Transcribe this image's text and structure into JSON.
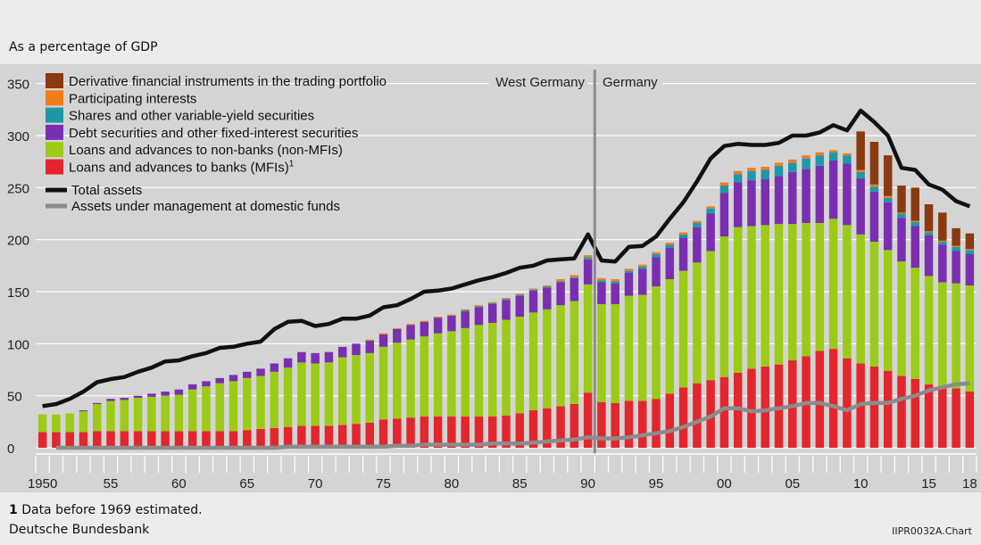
{
  "unit_label": "As a percentage of GDP",
  "period_labels": {
    "left": "West Germany",
    "right": "Germany"
  },
  "footnote": {
    "mark": "1",
    "text": "Data before 1969 estimated."
  },
  "source": "Deutsche Bundesbank",
  "chart_id": "IIPR0032A.Chart",
  "colors": {
    "derivatives": "#8a3a10",
    "participating": "#f07d1a",
    "shares": "#1e98a6",
    "debt": "#7a2fb0",
    "loans_nonbanks": "#9bcb16",
    "loans_banks": "#e3262e",
    "total_assets": "#111111",
    "aum": "#8c8c8c",
    "divider": "#8c8c8c"
  },
  "chart_data": {
    "type": "bar",
    "stacked": true,
    "ylim": [
      0,
      350
    ],
    "yticks": [
      0,
      50,
      100,
      150,
      200,
      250,
      300,
      350
    ],
    "x": [
      1950,
      1951,
      1952,
      1953,
      1954,
      1955,
      1956,
      1957,
      1958,
      1959,
      1960,
      1961,
      1962,
      1963,
      1964,
      1965,
      1966,
      1967,
      1968,
      1969,
      1970,
      1971,
      1972,
      1973,
      1974,
      1975,
      1976,
      1977,
      1978,
      1979,
      1980,
      1981,
      1982,
      1983,
      1984,
      1985,
      1986,
      1987,
      1988,
      1989,
      1990,
      1991,
      1992,
      1993,
      1994,
      1995,
      1996,
      1997,
      1998,
      1999,
      2000,
      2001,
      2002,
      2003,
      2004,
      2005,
      2006,
      2007,
      2008,
      2009,
      2010,
      2011,
      2012,
      2013,
      2014,
      2015,
      2016,
      2017,
      2018
    ],
    "xtick_labels": [
      {
        "year": 1950,
        "label": "1950"
      },
      {
        "year": 1955,
        "label": "55"
      },
      {
        "year": 1960,
        "label": "60"
      },
      {
        "year": 1965,
        "label": "65"
      },
      {
        "year": 1970,
        "label": "70"
      },
      {
        "year": 1975,
        "label": "75"
      },
      {
        "year": 1980,
        "label": "80"
      },
      {
        "year": 1985,
        "label": "85"
      },
      {
        "year": 1990,
        "label": "90"
      },
      {
        "year": 1995,
        "label": "95"
      },
      {
        "year": 2000,
        "label": "00"
      },
      {
        "year": 2005,
        "label": "05"
      },
      {
        "year": 2010,
        "label": "10"
      },
      {
        "year": 2015,
        "label": "15"
      },
      {
        "year": 2018,
        "label": "18"
      }
    ],
    "divider_year": 1990.5,
    "legend_position": "top-left",
    "series": [
      {
        "key": "loans_banks",
        "name": "Loans and advances to banks (MFIs)",
        "superscript": "1",
        "kind": "bar",
        "values": [
          15,
          15,
          15,
          15,
          16,
          16,
          16,
          16,
          16,
          16,
          16,
          16,
          16,
          16,
          16,
          17,
          18,
          19,
          20,
          21,
          21,
          21,
          22,
          23,
          24,
          27,
          28,
          29,
          30,
          30,
          30,
          30,
          30,
          30,
          31,
          33,
          36,
          38,
          40,
          42,
          53,
          44,
          43,
          45,
          45,
          47,
          52,
          58,
          62,
          65,
          68,
          72,
          76,
          78,
          80,
          84,
          88,
          93,
          95,
          86,
          81,
          78,
          74,
          69,
          66,
          61,
          58,
          57,
          54
        ]
      },
      {
        "key": "loans_nonbanks",
        "name": "Loans and advances to non-banks (non-MFIs)",
        "kind": "bar",
        "values": [
          17,
          17,
          18,
          20,
          26,
          29,
          30,
          32,
          33,
          34,
          35,
          40,
          43,
          46,
          48,
          50,
          51,
          54,
          57,
          61,
          60,
          61,
          65,
          66,
          67,
          70,
          73,
          75,
          77,
          80,
          82,
          85,
          88,
          90,
          92,
          93,
          94,
          95,
          97,
          99,
          104,
          94,
          95,
          101,
          102,
          108,
          110,
          112,
          116,
          124,
          135,
          140,
          137,
          136,
          135,
          131,
          128,
          123,
          125,
          128,
          124,
          120,
          116,
          110,
          107,
          104,
          101,
          101,
          102
        ]
      },
      {
        "key": "debt",
        "name": "Debt securities and other fixed-interest securities",
        "kind": "bar",
        "values": [
          0,
          0,
          0,
          1,
          1,
          2,
          2,
          2,
          3,
          4,
          5,
          5,
          5,
          5,
          6,
          6,
          7,
          8,
          9,
          10,
          10,
          10,
          10,
          11,
          12,
          12,
          13,
          14,
          14,
          15,
          15,
          16,
          17,
          18,
          19,
          20,
          21,
          21,
          22,
          22,
          24,
          21,
          20,
          22,
          25,
          28,
          30,
          32,
          34,
          36,
          42,
          43,
          44,
          44,
          46,
          50,
          52,
          55,
          56,
          59,
          54,
          48,
          46,
          42,
          40,
          39,
          36,
          31,
          30
        ]
      },
      {
        "key": "shares",
        "name": "Shares and other variable-yield securities",
        "kind": "bar",
        "values": [
          0,
          0,
          0,
          0,
          0,
          0,
          0,
          0,
          0,
          0,
          0,
          0,
          0,
          0,
          0,
          0,
          0,
          0,
          0,
          0,
          0,
          0,
          0,
          0,
          0,
          0,
          0,
          0,
          0,
          0,
          0,
          1,
          1,
          1,
          1,
          1,
          1,
          1,
          1,
          1,
          2,
          2,
          2,
          2,
          2,
          3,
          3,
          3,
          4,
          5,
          7,
          8,
          9,
          9,
          10,
          9,
          10,
          10,
          8,
          8,
          6,
          5,
          4,
          4,
          4,
          3,
          3,
          4,
          4
        ]
      },
      {
        "key": "participating",
        "name": "Participating interests",
        "kind": "bar",
        "values": [
          0,
          0,
          0,
          0,
          0,
          0,
          0,
          0,
          0,
          0,
          0,
          0,
          0,
          0,
          0,
          0,
          0,
          0,
          0,
          0,
          0,
          0,
          0,
          0,
          1,
          1,
          1,
          1,
          1,
          1,
          1,
          1,
          1,
          1,
          1,
          1,
          1,
          1,
          2,
          2,
          2,
          2,
          2,
          2,
          2,
          2,
          2,
          2,
          2,
          2,
          3,
          3,
          3,
          3,
          3,
          3,
          3,
          3,
          2,
          2,
          2,
          2,
          2,
          1,
          1,
          1,
          1,
          1,
          1
        ]
      },
      {
        "key": "derivatives",
        "name": "Derivative financial instruments in the trading portfolio",
        "kind": "bar",
        "values": [
          0,
          0,
          0,
          0,
          0,
          0,
          0,
          0,
          0,
          0,
          0,
          0,
          0,
          0,
          0,
          0,
          0,
          0,
          0,
          0,
          0,
          0,
          0,
          0,
          0,
          0,
          0,
          0,
          0,
          0,
          0,
          0,
          0,
          0,
          0,
          0,
          0,
          0,
          0,
          0,
          0,
          0,
          0,
          0,
          0,
          0,
          0,
          0,
          0,
          0,
          0,
          0,
          0,
          0,
          0,
          0,
          0,
          0,
          0,
          0,
          37,
          41,
          39,
          26,
          32,
          26,
          27,
          17,
          15
        ]
      },
      {
        "key": "total_assets",
        "name": "Total assets",
        "kind": "line",
        "values": [
          40,
          42,
          47,
          54,
          63,
          66,
          68,
          73,
          77,
          83,
          84,
          88,
          91,
          96,
          97,
          100,
          102,
          114,
          121,
          122,
          117,
          119,
          124,
          124,
          127,
          135,
          137,
          143,
          150,
          151,
          153,
          157,
          161,
          164,
          168,
          173,
          175,
          180,
          181,
          182,
          205,
          180,
          179,
          193,
          194,
          203,
          220,
          236,
          256,
          278,
          290,
          292,
          291,
          291,
          293,
          300,
          300,
          303,
          310,
          305,
          324,
          313,
          300,
          269,
          267,
          253,
          248,
          237,
          232
        ]
      },
      {
        "key": "aum",
        "name": "Assets under management at domestic funds",
        "kind": "line",
        "values": [
          null,
          0,
          0,
          0,
          0,
          0,
          0,
          0,
          0,
          0,
          0,
          0,
          0,
          0,
          0,
          0,
          0,
          0,
          1,
          1,
          1,
          1,
          1,
          1,
          1,
          1,
          2,
          2,
          3,
          3,
          3,
          3,
          3,
          4,
          4,
          4,
          5,
          6,
          7,
          8,
          10,
          9,
          9,
          10,
          12,
          14,
          16,
          20,
          25,
          30,
          38,
          38,
          35,
          36,
          38,
          40,
          43,
          43,
          40,
          36,
          42,
          43,
          43,
          47,
          50,
          55,
          58,
          61,
          62
        ]
      }
    ]
  }
}
